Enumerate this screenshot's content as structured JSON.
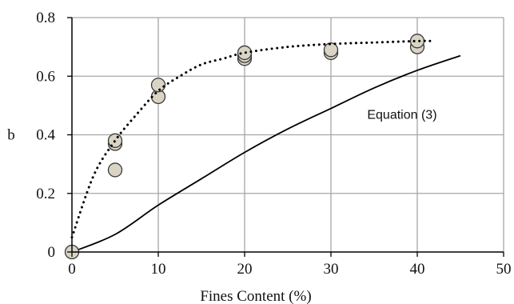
{
  "chart_data": {
    "type": "scatter",
    "title": "",
    "xlabel": "Fines Content (%)",
    "ylabel": "b",
    "xlim": [
      0,
      50
    ],
    "ylim": [
      0,
      0.8
    ],
    "x_ticks": [
      0,
      10,
      20,
      30,
      40,
      50
    ],
    "y_ticks": [
      0,
      0.2,
      0.4,
      0.6,
      0.8
    ],
    "x_tick_labels": [
      "0",
      "10",
      "20",
      "30",
      "40",
      "50"
    ],
    "y_tick_labels": [
      "0",
      "0.2",
      "0.4",
      "0.6",
      "0.8"
    ],
    "grid": true,
    "marker_color": "#d9d4c4",
    "series": [
      {
        "kind": "points",
        "x": [
          0,
          5,
          5,
          5,
          10,
          10,
          20,
          20,
          20,
          30,
          30,
          40,
          40
        ],
        "y": [
          0,
          0.28,
          0.37,
          0.38,
          0.53,
          0.57,
          0.66,
          0.67,
          0.68,
          0.68,
          0.69,
          0.7,
          0.72
        ]
      },
      {
        "kind": "dotted-fit",
        "x": [
          0,
          2.5,
          5,
          7.5,
          10,
          12.5,
          15,
          17.5,
          20,
          25,
          30,
          35,
          40,
          42
        ],
        "y": [
          0.05,
          0.26,
          0.38,
          0.47,
          0.55,
          0.6,
          0.64,
          0.66,
          0.68,
          0.7,
          0.71,
          0.715,
          0.72,
          0.72
        ]
      },
      {
        "kind": "solid-curve",
        "x": [
          0,
          5,
          10,
          15,
          20,
          25,
          30,
          35,
          40,
          45
        ],
        "y": [
          0,
          0.06,
          0.16,
          0.25,
          0.34,
          0.42,
          0.49,
          0.56,
          0.62,
          0.67
        ]
      }
    ],
    "annotations": [
      {
        "text": "Equation (3)",
        "x": 34.2,
        "y": 0.455
      }
    ]
  }
}
